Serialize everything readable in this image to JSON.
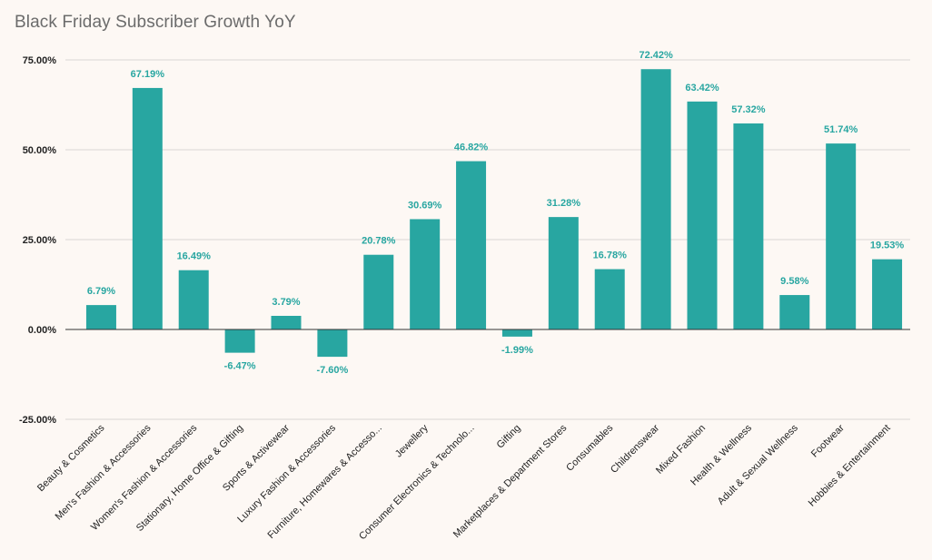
{
  "chart_data": {
    "type": "bar",
    "title": "Black Friday Subscriber Growth YoY",
    "xlabel": "",
    "ylabel": "",
    "ylim": [
      -25,
      75
    ],
    "yticks": [
      75,
      50,
      25,
      0,
      -25
    ],
    "ytick_labels": [
      "75.00%",
      "50.00%",
      "25.00%",
      "0.00%",
      "-25.00%"
    ],
    "grid": true,
    "bar_color": "#28a6a1",
    "label_color": "#28a6a1",
    "categories": [
      "Beauty & Cosmetics",
      "Men's Fashion & Accessories",
      "Women's Fashion & Accessories",
      "Stationary, Home Office & Gifting",
      "Sports & Activewear",
      "Luxury Fashion & Accessories",
      "Furniture, Homewares & Accesso...",
      "Jewellery",
      "Consumer Electronics & Technolo...",
      "Gifting",
      "Marketplaces & Department Stores",
      "Consumables",
      "Childrenswear",
      "Mixed Fashion",
      "Health & Wellness",
      "Adult & Sexual Wellness",
      "Footwear",
      "Hobbies & Entertainment"
    ],
    "values": [
      6.79,
      67.19,
      16.49,
      -6.47,
      3.79,
      -7.6,
      20.78,
      30.69,
      46.82,
      -1.99,
      31.28,
      16.78,
      72.42,
      63.42,
      57.32,
      9.58,
      51.74,
      19.53
    ],
    "value_labels": [
      "6.79%",
      "67.19%",
      "16.49%",
      "-6.47%",
      "3.79%",
      "-7.60%",
      "20.78%",
      "30.69%",
      "46.82%",
      "-1.99%",
      "31.28%",
      "16.78%",
      "72.42%",
      "63.42%",
      "57.32%",
      "9.58%",
      "51.74%",
      "19.53%"
    ]
  }
}
